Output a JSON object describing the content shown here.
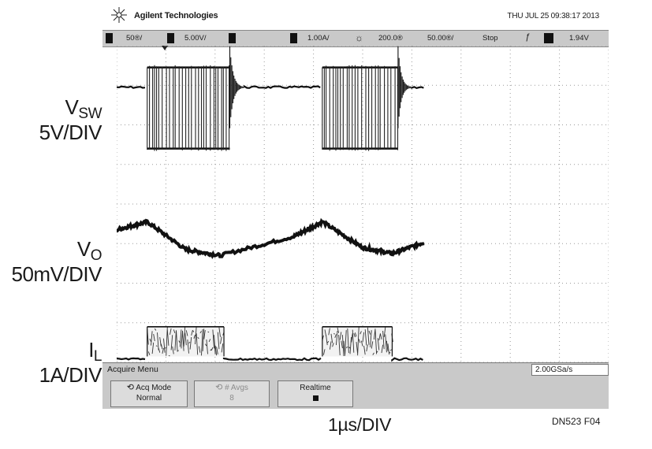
{
  "header": {
    "brand": "Agilent Technologies",
    "datetime": "THU JUL 25 09:38:17 2013"
  },
  "statusbar": {
    "ch1_scale": "50®/",
    "ch2_scale": "5.00V/",
    "ch4_scale": "1.00A/",
    "time_delay": "200.0®",
    "time_div": "50.00®/",
    "run_state": "Stop",
    "trigger_level": "1.94V"
  },
  "labels": {
    "vsw_main": "V",
    "vsw_sub": "SW",
    "vsw_scale": "5V/DIV",
    "vo_main": "V",
    "vo_sub": "O",
    "vo_scale": "50mV/DIV",
    "il_main": "I",
    "il_sub": "L",
    "il_scale": "1A/DIV",
    "timebase": "1µs/DIV",
    "figure_id": "DN523 F04"
  },
  "menu": {
    "title": "Acquire Menu",
    "sample_rate": "2.00GSa/s",
    "acq_mode_label": "Acq Mode",
    "acq_mode_value": "Normal",
    "avgs_label": "# Avgs",
    "avgs_value": "8",
    "realtime_label": "Realtime"
  },
  "chart_data": {
    "type": "line",
    "x_divisions": 10,
    "y_divisions": 8,
    "grid": true,
    "x_unit_per_div": "1µs",
    "series": [
      {
        "name": "VSW",
        "scale": "5V/DIV",
        "segments": [
          {
            "kind": "flat",
            "t": [
              0,
              0.62
            ],
            "level_div": 6.95
          },
          {
            "kind": "switching",
            "t": [
              0.62,
              2.3
            ],
            "high_div": 7.45,
            "low_div": 5.4
          },
          {
            "kind": "ringing",
            "t": [
              2.3,
              2.6
            ],
            "center_div": 6.95
          },
          {
            "kind": "flat",
            "t": [
              2.6,
              4.18
            ],
            "level_div": 6.95
          },
          {
            "kind": "switching",
            "t": [
              4.18,
              5.72
            ],
            "high_div": 7.45,
            "low_div": 5.4
          },
          {
            "kind": "ringing",
            "t": [
              5.72,
              6.0
            ],
            "center_div": 6.95
          },
          {
            "kind": "flat",
            "t": [
              6.0,
              6.25
            ],
            "level_div": 6.95
          }
        ]
      },
      {
        "name": "VO",
        "scale": "50mV/DIV",
        "points": [
          [
            0,
            3.35
          ],
          [
            0.62,
            3.55
          ],
          [
            1.4,
            2.85
          ],
          [
            2.1,
            2.7
          ],
          [
            3.6,
            3.18
          ],
          [
            4.18,
            3.55
          ],
          [
            5.0,
            2.9
          ],
          [
            5.6,
            2.75
          ],
          [
            6.25,
            3.03
          ]
        ]
      },
      {
        "name": "IL",
        "scale": "1A/DIV",
        "segments": [
          {
            "kind": "flat",
            "t": [
              0,
              0.62
            ],
            "level_div": 0.08
          },
          {
            "kind": "noisy",
            "t": [
              0.62,
              2.18
            ],
            "top_div": 0.9,
            "bottom_div": 0.15
          },
          {
            "kind": "flat",
            "t": [
              2.18,
              4.18
            ],
            "level_div": 0.08
          },
          {
            "kind": "noisy",
            "t": [
              4.18,
              5.6
            ],
            "top_div": 0.9,
            "bottom_div": 0.15
          },
          {
            "kind": "flat",
            "t": [
              5.6,
              6.25
            ],
            "level_div": 0.08
          }
        ]
      }
    ]
  }
}
